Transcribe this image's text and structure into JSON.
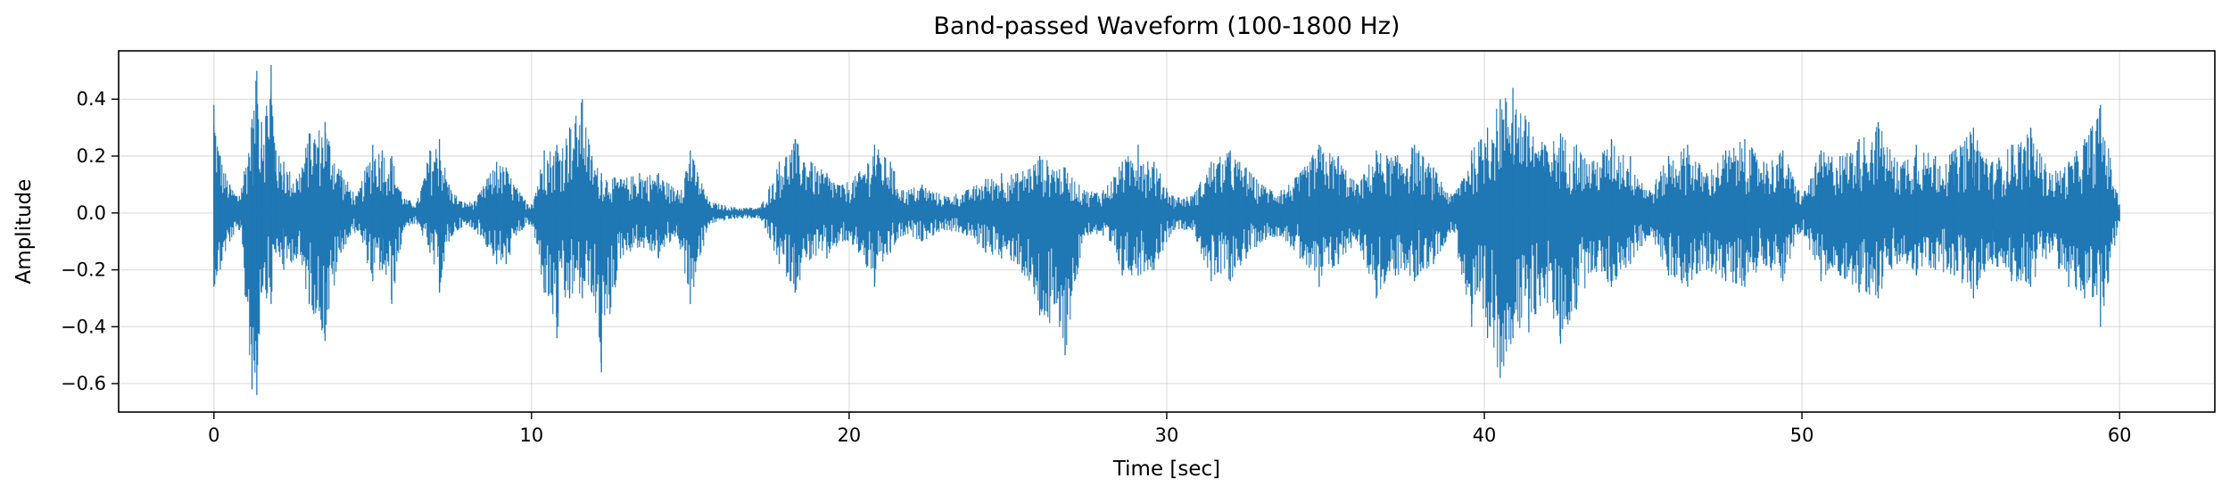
{
  "chart_data": {
    "type": "line",
    "title": "Band-passed Waveform (100-1800 Hz)",
    "xlabel": "Time [sec]",
    "ylabel": "Amplitude",
    "xlim": [
      -3,
      63
    ],
    "ylim": [
      -0.7,
      0.57
    ],
    "x_ticks": [
      0,
      10,
      20,
      30,
      40,
      50,
      60
    ],
    "x_tick_labels": [
      "0",
      "10",
      "20",
      "30",
      "40",
      "50",
      "60"
    ],
    "y_ticks": [
      -0.6,
      -0.4,
      -0.2,
      0.0,
      0.2,
      0.4
    ],
    "y_tick_labels": [
      "−0.6",
      "−0.4",
      "−0.2",
      "0.0",
      "0.2",
      "0.4"
    ],
    "grid": true,
    "legend": "none",
    "line_color": "#1f77b4",
    "series": [
      {
        "x": [
          0.0,
          0.2,
          0.5,
          0.8,
          1.2,
          1.35,
          1.5,
          1.8,
          1.95,
          2.2,
          2.6,
          3.0,
          3.5,
          4.0,
          4.5,
          5.0,
          5.3,
          5.6,
          6.0,
          6.4,
          6.8,
          7.1,
          7.4,
          7.8,
          8.2,
          8.6,
          8.9,
          9.2,
          9.7,
          10.0,
          10.4,
          10.8,
          11.2,
          11.6,
          11.9,
          12.2,
          12.8,
          13.4,
          14.0,
          14.6,
          15.0,
          15.6,
          16.4,
          17.2,
          17.8,
          18.3,
          18.8,
          19.3,
          19.8,
          20.3,
          20.8,
          21.3,
          21.7,
          22.3,
          23.0,
          23.7,
          24.3,
          24.8,
          25.3,
          26.0,
          26.8,
          27.4,
          28.0,
          28.6,
          29.1,
          29.6,
          30.2,
          30.8,
          31.4,
          32.0,
          32.5,
          33.0,
          33.6,
          34.2,
          34.8,
          35.4,
          36.0,
          36.6,
          37.2,
          37.8,
          38.4,
          39.0,
          39.6,
          40.1,
          40.5,
          40.9,
          41.4,
          41.9,
          42.4,
          42.9,
          43.4,
          44.0,
          44.6,
          45.2,
          45.8,
          46.4,
          47.0,
          47.6,
          48.2,
          48.8,
          49.4,
          50.0,
          50.6,
          51.2,
          51.8,
          52.4,
          53.0,
          53.6,
          54.2,
          54.8,
          55.4,
          56.0,
          56.6,
          57.2,
          57.8,
          58.4,
          58.9,
          59.4,
          60.0
        ],
        "upper": [
          0.38,
          0.2,
          0.1,
          0.06,
          0.33,
          0.5,
          0.32,
          0.52,
          0.22,
          0.18,
          0.12,
          0.28,
          0.32,
          0.15,
          0.06,
          0.24,
          0.22,
          0.2,
          0.05,
          0.04,
          0.22,
          0.26,
          0.1,
          0.04,
          0.04,
          0.12,
          0.18,
          0.16,
          0.06,
          0.03,
          0.22,
          0.24,
          0.3,
          0.4,
          0.2,
          0.14,
          0.12,
          0.14,
          0.14,
          0.08,
          0.22,
          0.04,
          0.02,
          0.02,
          0.18,
          0.26,
          0.18,
          0.14,
          0.1,
          0.14,
          0.24,
          0.18,
          0.08,
          0.1,
          0.06,
          0.08,
          0.12,
          0.14,
          0.14,
          0.2,
          0.16,
          0.08,
          0.08,
          0.18,
          0.24,
          0.18,
          0.06,
          0.06,
          0.18,
          0.22,
          0.16,
          0.1,
          0.08,
          0.14,
          0.24,
          0.2,
          0.1,
          0.22,
          0.2,
          0.24,
          0.16,
          0.06,
          0.22,
          0.3,
          0.4,
          0.44,
          0.32,
          0.24,
          0.28,
          0.24,
          0.18,
          0.26,
          0.2,
          0.08,
          0.2,
          0.24,
          0.14,
          0.22,
          0.26,
          0.18,
          0.22,
          0.06,
          0.22,
          0.2,
          0.26,
          0.32,
          0.18,
          0.24,
          0.2,
          0.22,
          0.3,
          0.18,
          0.24,
          0.3,
          0.14,
          0.18,
          0.26,
          0.38,
          0.03
        ],
        "lower": [
          -0.26,
          -0.2,
          -0.1,
          -0.06,
          -0.62,
          -0.64,
          -0.28,
          -0.32,
          -0.14,
          -0.2,
          -0.16,
          -0.32,
          -0.45,
          -0.14,
          -0.06,
          -0.24,
          -0.2,
          -0.32,
          -0.05,
          -0.04,
          -0.14,
          -0.28,
          -0.1,
          -0.05,
          -0.06,
          -0.12,
          -0.18,
          -0.18,
          -0.06,
          -0.04,
          -0.28,
          -0.44,
          -0.3,
          -0.3,
          -0.28,
          -0.56,
          -0.16,
          -0.12,
          -0.16,
          -0.08,
          -0.32,
          -0.04,
          -0.02,
          -0.02,
          -0.18,
          -0.28,
          -0.16,
          -0.16,
          -0.1,
          -0.14,
          -0.26,
          -0.14,
          -0.08,
          -0.1,
          -0.06,
          -0.08,
          -0.14,
          -0.16,
          -0.18,
          -0.36,
          -0.5,
          -0.08,
          -0.08,
          -0.22,
          -0.22,
          -0.2,
          -0.06,
          -0.06,
          -0.24,
          -0.24,
          -0.16,
          -0.1,
          -0.08,
          -0.16,
          -0.26,
          -0.18,
          -0.1,
          -0.3,
          -0.22,
          -0.24,
          -0.18,
          -0.06,
          -0.4,
          -0.44,
          -0.58,
          -0.44,
          -0.42,
          -0.3,
          -0.46,
          -0.34,
          -0.2,
          -0.26,
          -0.18,
          -0.08,
          -0.22,
          -0.26,
          -0.2,
          -0.24,
          -0.26,
          -0.18,
          -0.24,
          -0.06,
          -0.24,
          -0.22,
          -0.28,
          -0.3,
          -0.18,
          -0.22,
          -0.2,
          -0.22,
          -0.3,
          -0.18,
          -0.24,
          -0.26,
          -0.14,
          -0.26,
          -0.3,
          -0.4,
          -0.03
        ]
      }
    ]
  }
}
